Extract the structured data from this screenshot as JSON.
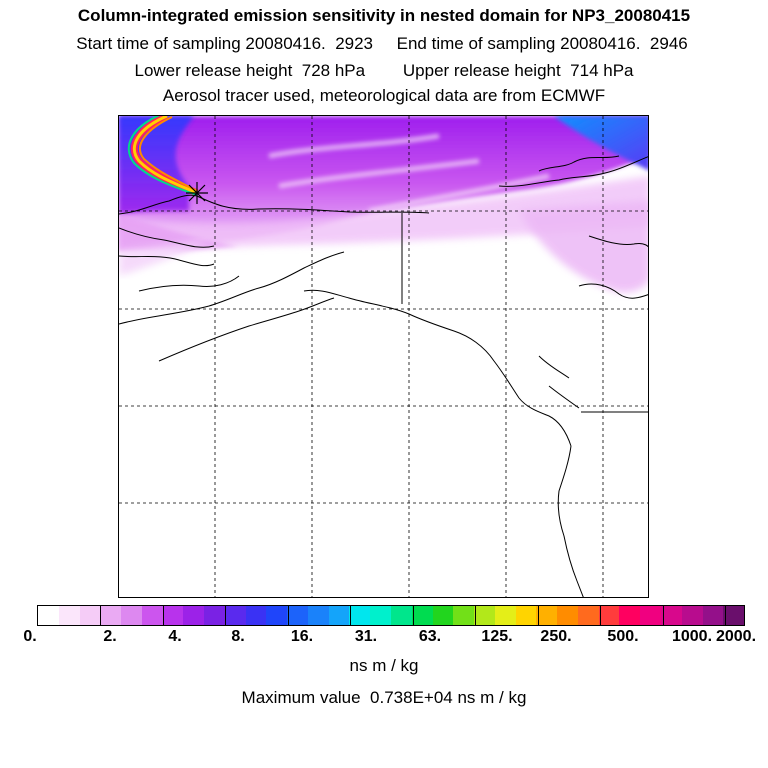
{
  "header": {
    "title": "Column-integrated emission sensitivity in nested domain for NP3_20080415",
    "start_label": "Start time of sampling 20080416.  2923",
    "end_label": "End time of sampling 20080416.  2946",
    "lower_label": "Lower release height  728 hPa",
    "upper_label": "Upper release height  714 hPa",
    "aerosol_line": "Aerosol tracer used, meteorological data are from ECMWF"
  },
  "map": {
    "release_marker": "star-marker",
    "colors": {
      "light_violet": "#f0c8f8",
      "violet": "#cc44ee",
      "deep_violet": "#8800ee",
      "blue": "#2255ff",
      "cyan": "#00aaff"
    }
  },
  "colorbar": {
    "colors": [
      "#ffffff",
      "#fbe6fb",
      "#f5ccf7",
      "#eaaaf3",
      "#dd88f0",
      "#cc55ee",
      "#b833ec",
      "#9c22e8",
      "#7a22e4",
      "#5a2aee",
      "#3a32f4",
      "#1f45fa",
      "#1c63fa",
      "#1a82fa",
      "#14a4fa",
      "#00e6ee",
      "#00f0cc",
      "#00e68c",
      "#00dc50",
      "#22d51e",
      "#72e018",
      "#b2e81a",
      "#e4ee18",
      "#ffd400",
      "#ffb000",
      "#ff8c00",
      "#ff6a1e",
      "#ff3c3c",
      "#ff0060",
      "#f00080",
      "#d8088c",
      "#b80c8e",
      "#94108a",
      "#6a0f6c"
    ],
    "tick_labels": [
      "0.",
      "2.",
      "4.",
      "8.",
      "16.",
      "31.",
      "63.",
      "125.",
      "250.",
      "500.",
      "1000.",
      "2000."
    ],
    "units": "ns m / kg",
    "max_value_text": "Maximum value  0.738E+04 ns m / kg"
  }
}
